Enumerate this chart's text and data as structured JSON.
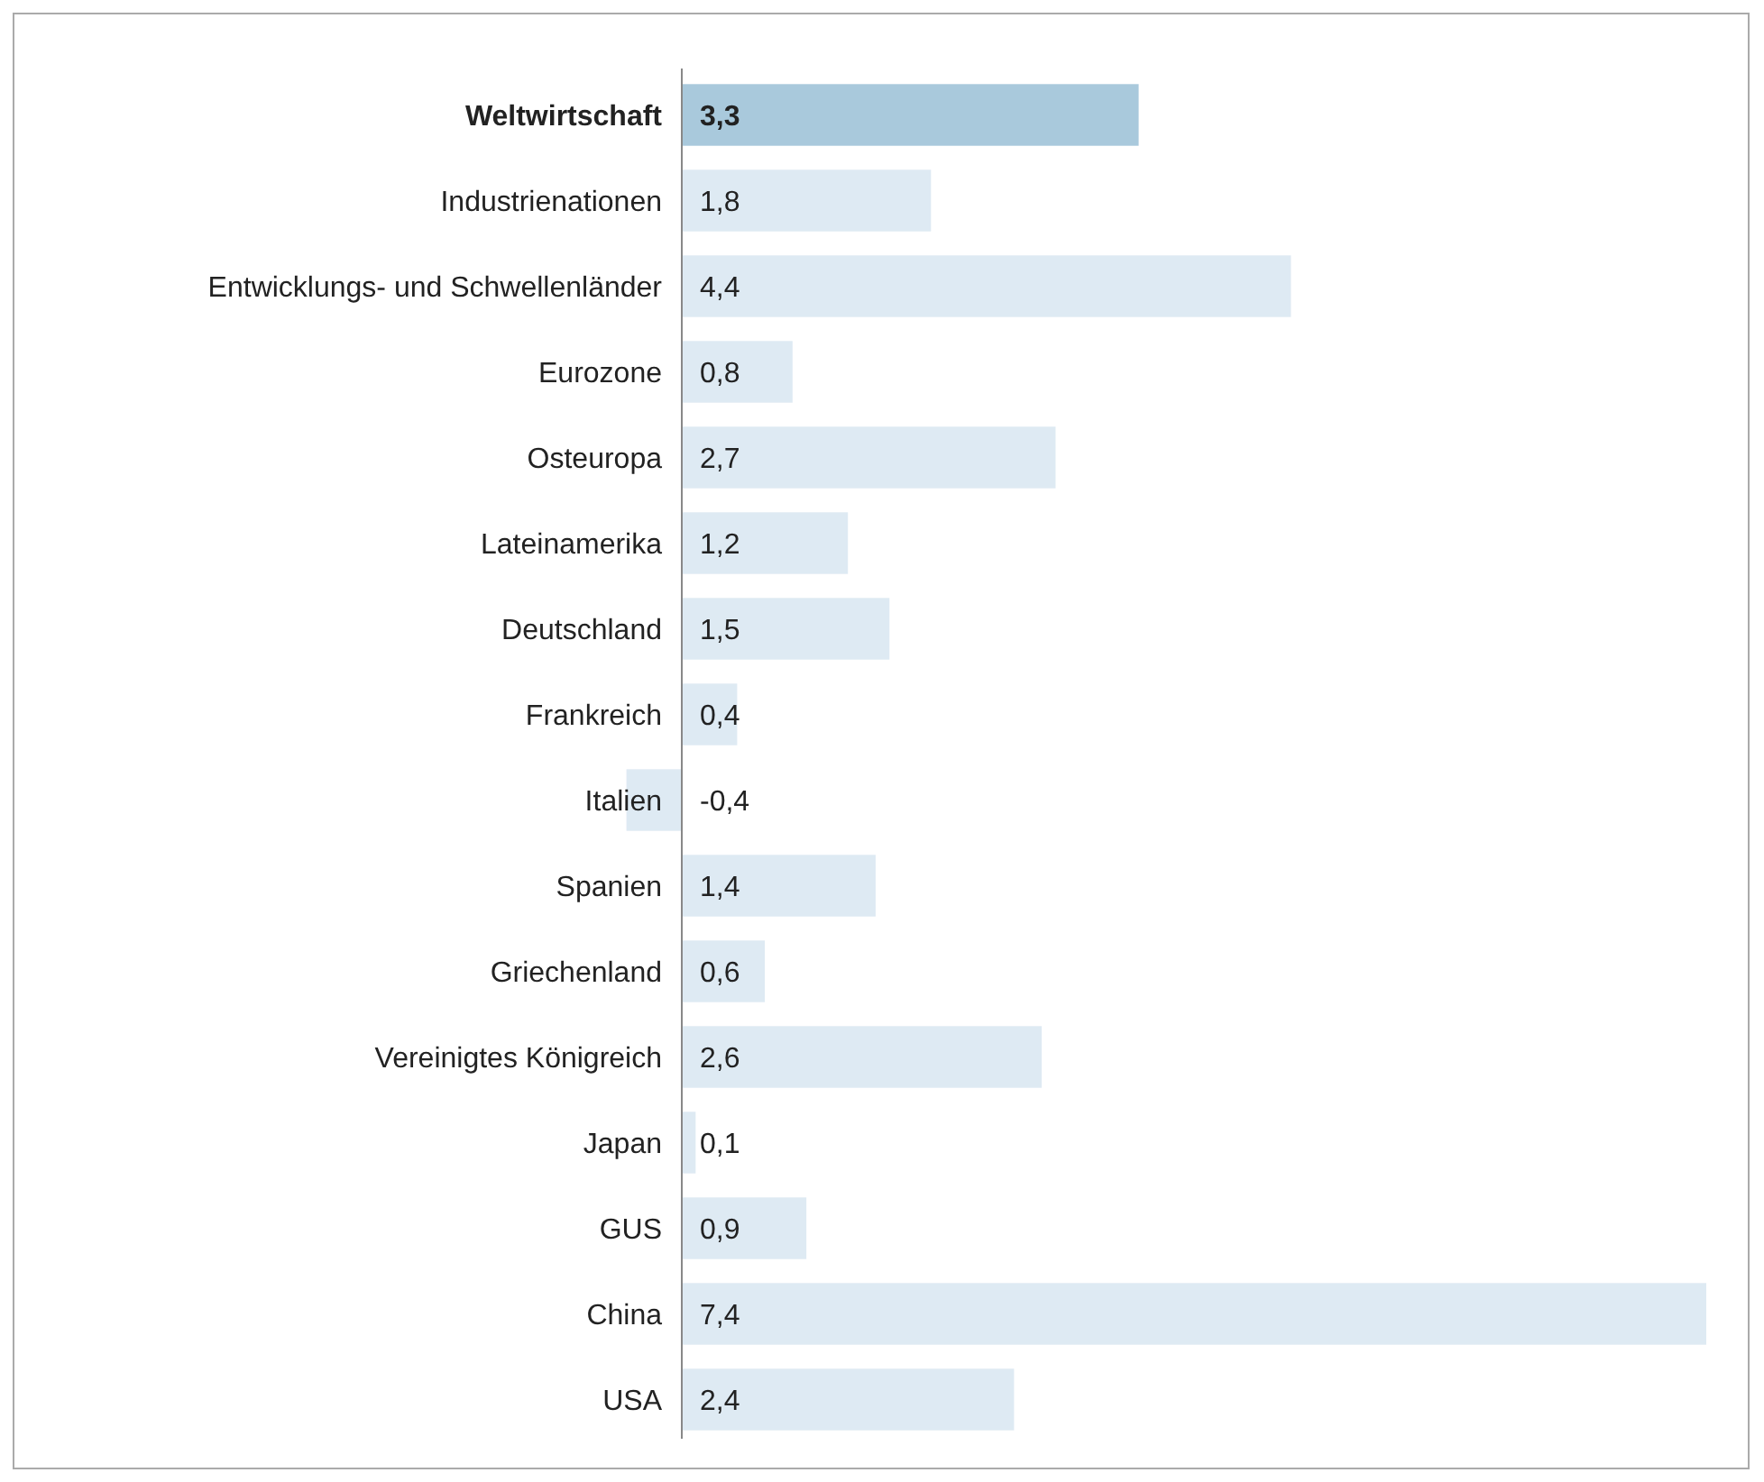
{
  "chart_data": {
    "type": "bar",
    "orientation": "horizontal",
    "categories": [
      "Weltwirtschaft",
      "Industrienationen",
      "Entwicklungs- und Schwellenländer",
      "Eurozone",
      "Osteuropa",
      "Lateinamerika",
      "Deutschland",
      "Frankreich",
      "Italien",
      "Spanien",
      "Griechenland",
      "Vereinigtes Königreich",
      "Japan",
      "GUS",
      "China",
      "USA"
    ],
    "values": [
      3.3,
      1.8,
      4.4,
      0.8,
      2.7,
      1.2,
      1.5,
      0.4,
      -0.4,
      1.4,
      0.6,
      2.6,
      0.1,
      0.9,
      7.4,
      2.4
    ],
    "colors": [
      "#a9c9dc",
      "#deeaf3",
      "#deeaf3",
      "#deeaf3",
      "#deeaf3",
      "#deeaf3",
      "#deeaf3",
      "#deeaf3",
      "#deeaf3",
      "#deeaf3",
      "#deeaf3",
      "#deeaf3",
      "#deeaf3",
      "#deeaf3",
      "#deeaf3",
      "#deeaf3"
    ],
    "value_labels": [
      "3,3",
      "1,8",
      "4,4",
      "0,8",
      "2,7",
      "1,2",
      "1,5",
      "0,4",
      "-0,4",
      "1,4",
      "0,6",
      "2,6",
      "0,1",
      "0,9",
      "7,4",
      "2,4"
    ]
  }
}
